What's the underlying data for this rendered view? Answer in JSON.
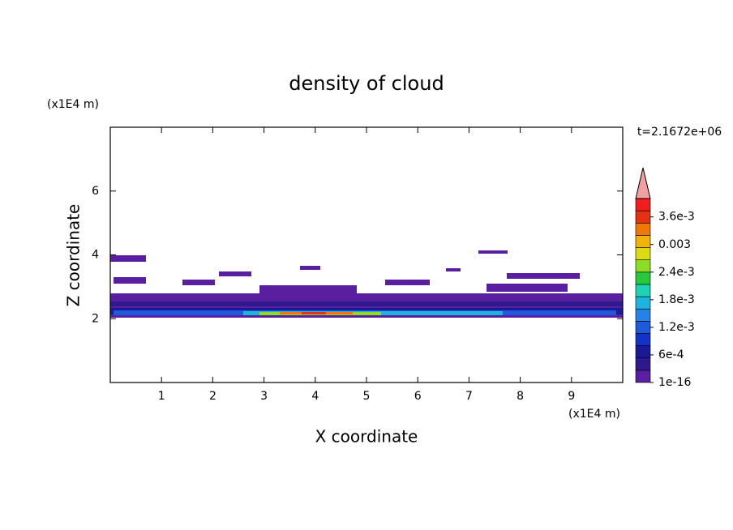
{
  "chart_data": {
    "type": "contour",
    "title": "density of cloud",
    "x_label": "X coordinate",
    "y_label": "Z coordinate",
    "x_unit": "(x1E4 m)",
    "y_unit": "(x1E4 m)",
    "time_label": "t=2.1672e+06",
    "xlim": [
      0,
      10
    ],
    "xticks": [
      1,
      2,
      3,
      4,
      5,
      6,
      7,
      8,
      9
    ],
    "ylim": [
      0,
      8
    ],
    "yticks": [
      2,
      4,
      6
    ],
    "colorbar": {
      "clim": [
        0,
        0.004
      ],
      "colors": [
        "#5a1fa0",
        "#2e1a8c",
        "#1a1a96",
        "#1432c8",
        "#1e5adc",
        "#2882e6",
        "#1eb4dc",
        "#1ed2b4",
        "#28c83c",
        "#8cdc28",
        "#dcdc14",
        "#f0b40a",
        "#f0780a",
        "#e63214",
        "#f01e1e"
      ],
      "extend_color": "#f0a0a0",
      "ticks": [
        {
          "value": 1e-16,
          "label": "1e-16"
        },
        {
          "value": 0.0006,
          "label": "6e-4"
        },
        {
          "value": 0.0012,
          "label": "1.2e-3"
        },
        {
          "value": 0.0018,
          "label": "1.8e-3"
        },
        {
          "value": 0.0024,
          "label": "2.4e-3"
        },
        0.003,
        {
          "value": 0.0036,
          "label": "3.6e-3"
        }
      ]
    }
  }
}
